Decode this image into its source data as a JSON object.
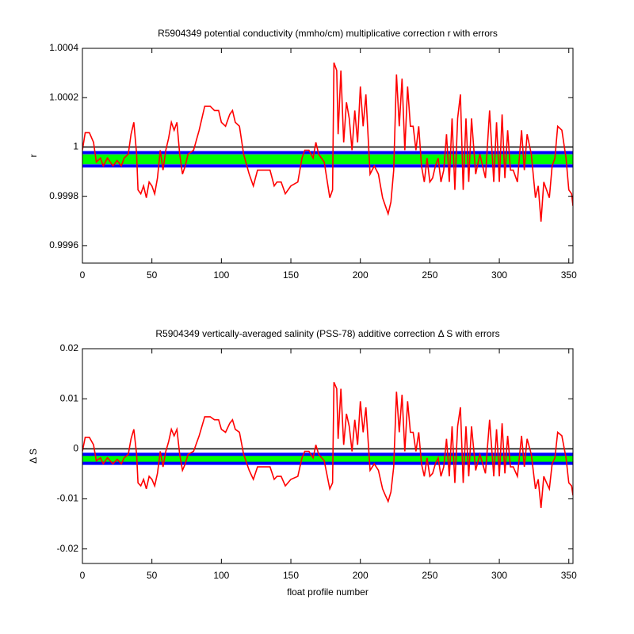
{
  "chart_data": [
    {
      "type": "line",
      "title": "R5904349 potential conductivity (mmho/cm) multiplicative correction r with errors",
      "ylabel": "r",
      "xlim": [
        0,
        353
      ],
      "xticks": [
        0,
        50,
        100,
        150,
        200,
        250,
        300,
        350
      ],
      "ylim": [
        0.999529,
        1.0004
      ],
      "yticks": [
        0.9996,
        0.9998,
        1,
        1.0002,
        1.0004
      ],
      "grid": false,
      "hlines": [
        {
          "value": 1,
          "color": "#000000"
        },
        {
          "value": 0.999977,
          "color": "#0000ff"
        },
        {
          "value": 0.999923,
          "color": "#0000ff"
        }
      ],
      "band": {
        "low": 0.99993,
        "high": 0.99997,
        "color": "#00ff00"
      },
      "x": [
        0,
        2,
        5,
        8,
        10,
        13,
        15,
        18,
        20,
        22,
        25,
        28,
        30,
        33,
        35,
        37,
        39,
        40,
        42,
        44,
        46,
        48,
        50,
        52,
        54,
        56,
        58,
        60,
        62,
        64,
        66,
        68,
        70,
        72,
        74,
        76,
        80,
        84,
        88,
        92,
        95,
        98,
        100,
        103,
        106,
        108,
        110,
        113,
        116,
        120,
        123,
        126,
        130,
        135,
        138,
        140,
        143,
        146,
        150,
        155,
        158,
        160,
        163,
        166,
        168,
        170,
        174,
        178,
        180,
        181,
        183,
        184,
        186,
        188,
        190,
        192,
        194,
        196,
        198,
        200,
        202,
        204,
        207,
        210,
        213,
        216,
        218,
        220,
        222,
        224,
        226,
        228,
        230,
        232,
        234,
        236,
        238,
        240,
        242,
        244,
        246,
        248,
        250,
        252,
        254,
        256,
        258,
        260,
        262,
        264,
        266,
        268,
        270,
        272,
        274,
        276,
        278,
        280,
        283,
        286,
        290,
        293,
        296,
        298,
        300,
        302,
        304,
        306,
        308,
        310,
        313,
        316,
        318,
        320,
        323,
        326,
        328,
        330,
        332,
        334,
        336,
        338,
        340,
        342,
        345,
        348,
        350,
        352,
        353
      ],
      "series": [
        {
          "color": "#ff0000",
          "values": [
            0.999987,
            1.000058,
            1.000058,
            1.000019,
            0.999939,
            0.999955,
            0.999923,
            0.999955,
            0.999939,
            0.999923,
            0.999945,
            0.999923,
            0.999955,
            0.999971,
            1.000052,
            1.0001,
            0.999971,
            0.999826,
            0.99981,
            0.999842,
            0.999794,
            0.999858,
            0.999842,
            0.99981,
            0.999874,
            0.999987,
            0.999906,
            0.999987,
            1.000035,
            1.0001,
            1.000068,
            1.0001,
            0.999971,
            0.99989,
            0.999923,
            0.999971,
            0.999987,
            1.000068,
            1.000165,
            1.000165,
            1.000148,
            1.000148,
            1.0001,
            1.000084,
            1.000132,
            1.000148,
            1.0001,
            1.000084,
            0.999971,
            0.99989,
            0.999842,
            0.999906,
            0.999906,
            0.999906,
            0.999842,
            0.999858,
            0.999858,
            0.99981,
            0.999842,
            0.999858,
            0.999955,
            0.999987,
            0.999987,
            0.999955,
            1.000019,
            0.999971,
            0.999939,
            0.999794,
            0.999826,
            1.000342,
            1.00031,
            1.000052,
            1.00031,
            1.000019,
            1.000181,
            1.000116,
            0.999987,
            1.000148,
            1.000019,
            1.000245,
            1.000084,
            1.000213,
            0.99989,
            0.999923,
            0.99989,
            0.999794,
            0.999761,
            0.999729,
            0.999777,
            0.999906,
            1.000294,
            1.000084,
            1.000277,
            0.999987,
            1.000245,
            1.000084,
            1.000084,
            0.999987,
            1.000084,
            0.999923,
            0.999858,
            0.999955,
            0.999858,
            0.999874,
            0.999923,
            0.999955,
            0.999858,
            0.999906,
            1.000052,
            0.999858,
            1.000116,
            0.999826,
            1.000116,
            1.000213,
            0.999826,
            1.000116,
            0.999858,
            1.000116,
            0.99989,
            0.999971,
            0.999874,
            1.000148,
            0.999858,
            1.0001,
            0.999858,
            1.000132,
            0.999874,
            1.000068,
            0.999906,
            0.999906,
            0.999858,
            1.000068,
            0.999906,
            1.000052,
            0.999971,
            0.999794,
            0.999842,
            0.999697,
            0.999858,
            0.999826,
            0.999794,
            0.999923,
            0.999955,
            1.000084,
            1.000068,
            0.999955,
            0.999826,
            0.99981,
            0.999761
          ]
        }
      ]
    },
    {
      "type": "line",
      "title": "R5904349 vertically-averaged salinity (PSS-78) additive correction Δ S with errors",
      "ylabel": "Δ S",
      "xlabel": "float profile number",
      "xlim": [
        0,
        353
      ],
      "xticks": [
        0,
        50,
        100,
        150,
        200,
        250,
        300,
        350
      ],
      "ylim": [
        -0.0229,
        0.02
      ],
      "yticks": [
        -0.02,
        -0.01,
        0,
        0.01,
        0.02
      ],
      "grid": false,
      "hlines": [
        {
          "value": 0,
          "color": "#000000"
        },
        {
          "value": -0.0011,
          "color": "#0000ff"
        },
        {
          "value": -0.0029,
          "color": "#0000ff"
        }
      ],
      "band": {
        "low": -0.0027,
        "high": -0.0013,
        "color": "#00ff00"
      },
      "x": [
        0,
        2,
        5,
        8,
        10,
        13,
        15,
        18,
        20,
        22,
        25,
        28,
        30,
        33,
        35,
        37,
        39,
        40,
        42,
        44,
        46,
        48,
        50,
        52,
        54,
        56,
        58,
        60,
        62,
        64,
        66,
        68,
        70,
        72,
        74,
        76,
        80,
        84,
        88,
        92,
        95,
        98,
        100,
        103,
        106,
        108,
        110,
        113,
        116,
        120,
        123,
        126,
        130,
        135,
        138,
        140,
        143,
        146,
        150,
        155,
        158,
        160,
        163,
        166,
        168,
        170,
        174,
        178,
        180,
        181,
        183,
        184,
        186,
        188,
        190,
        192,
        194,
        196,
        198,
        200,
        202,
        204,
        207,
        210,
        213,
        216,
        218,
        220,
        222,
        224,
        226,
        228,
        230,
        232,
        234,
        236,
        238,
        240,
        242,
        244,
        246,
        248,
        250,
        252,
        254,
        256,
        258,
        260,
        262,
        264,
        266,
        268,
        270,
        272,
        274,
        276,
        278,
        280,
        283,
        286,
        290,
        293,
        296,
        298,
        300,
        302,
        304,
        306,
        308,
        310,
        313,
        316,
        318,
        320,
        323,
        326,
        328,
        330,
        332,
        334,
        336,
        338,
        340,
        342,
        345,
        348,
        350,
        352,
        353
      ],
      "series": [
        {
          "color": "#ff0000",
          "values": [
            -0.0005,
            0.0023,
            0.0023,
            0.0008,
            -0.0024,
            -0.0018,
            -0.003,
            -0.0018,
            -0.0024,
            -0.003,
            -0.0021,
            -0.003,
            -0.0018,
            -0.0011,
            0.002,
            0.0039,
            -0.0011,
            -0.0068,
            -0.0074,
            -0.0061,
            -0.008,
            -0.0055,
            -0.0061,
            -0.0074,
            -0.0049,
            -0.0005,
            -0.0036,
            -0.0005,
            0.0014,
            0.0039,
            0.0026,
            0.0039,
            -0.0011,
            -0.0043,
            -0.003,
            -0.0011,
            -0.0005,
            0.0026,
            0.0064,
            0.0064,
            0.0058,
            0.0058,
            0.0039,
            0.0033,
            0.0051,
            0.0058,
            0.0039,
            0.0033,
            -0.0011,
            -0.0043,
            -0.0061,
            -0.0036,
            -0.0036,
            -0.0036,
            -0.0061,
            -0.0055,
            -0.0055,
            -0.0074,
            -0.0061,
            -0.0055,
            -0.0018,
            -0.0005,
            -0.0005,
            -0.0018,
            0.0008,
            -0.0011,
            -0.0024,
            -0.008,
            -0.0068,
            0.0133,
            0.012,
            0.002,
            0.012,
            0.0008,
            0.007,
            0.0045,
            -0.0005,
            0.0058,
            0.0008,
            0.0095,
            0.0033,
            0.0083,
            -0.0043,
            -0.003,
            -0.0043,
            -0.008,
            -0.0093,
            -0.0105,
            -0.0086,
            -0.0036,
            0.0114,
            0.0033,
            0.0108,
            -0.0005,
            0.0095,
            0.0033,
            0.0033,
            -0.0005,
            0.0033,
            -0.003,
            -0.0055,
            -0.0018,
            -0.0055,
            -0.0049,
            -0.003,
            -0.0018,
            -0.0055,
            -0.0036,
            0.002,
            -0.0055,
            0.0045,
            -0.0068,
            0.0045,
            0.0083,
            -0.0068,
            0.0045,
            -0.0055,
            0.0045,
            -0.0043,
            -0.0011,
            -0.0049,
            0.0058,
            -0.0055,
            0.0039,
            -0.0055,
            0.0051,
            -0.0049,
            0.0026,
            -0.0036,
            -0.0036,
            -0.0055,
            0.0026,
            -0.0036,
            0.002,
            -0.0011,
            -0.008,
            -0.0061,
            -0.0118,
            -0.0055,
            -0.0068,
            -0.008,
            -0.003,
            -0.0018,
            0.0033,
            0.0026,
            -0.0018,
            -0.0068,
            -0.0074,
            -0.0093
          ]
        }
      ]
    }
  ]
}
